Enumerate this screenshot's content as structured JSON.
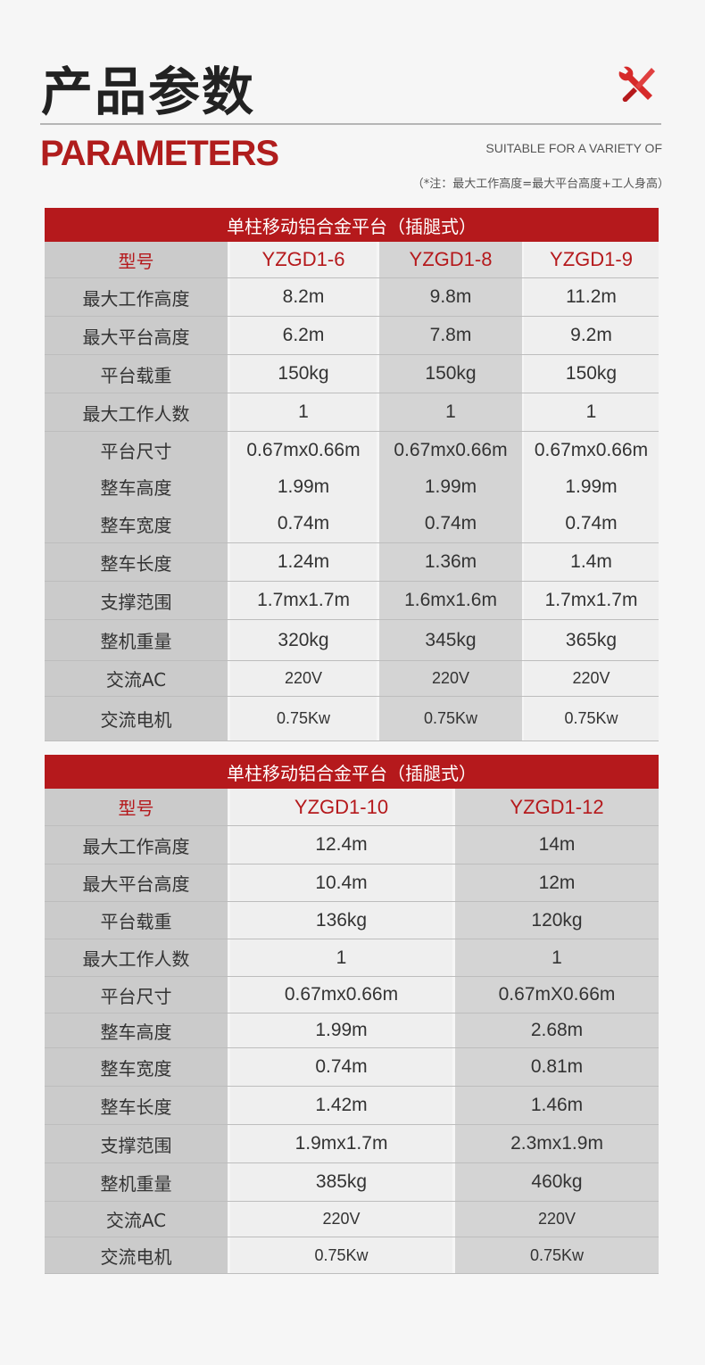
{
  "header": {
    "title_cn": "产品参数",
    "title_en": "PARAMETERS",
    "subtitle": "SUITABLE FOR A VARIETY OF",
    "note": "（*注：最大工作高度=最大平台高度+工人身高）",
    "icon": "tools-icon",
    "accent_color": "#b5191c"
  },
  "tables": [
    {
      "title": "单柱移动铝合金平台（插腿式）",
      "columns": [
        "型号",
        "YZGD1-6",
        "YZGD1-8",
        "YZGD1-9"
      ],
      "rows": [
        [
          "最大工作高度",
          "8.2m",
          "9.8m",
          "11.2m"
        ],
        [
          "最大平台高度",
          "6.2m",
          "7.8m",
          "9.2m"
        ],
        [
          "平台载重",
          "150kg",
          "150kg",
          "150kg"
        ],
        [
          "最大工作人数",
          "1",
          "1",
          "1"
        ],
        [
          "平台尺寸",
          "0.67mx0.66m",
          "0.67mx0.66m",
          "0.67mx0.66m"
        ],
        [
          "整车高度",
          "1.99m",
          "1.99m",
          "1.99m"
        ],
        [
          "整车宽度",
          "0.74m",
          "0.74m",
          "0.74m"
        ],
        [
          "整车长度",
          "1.24m",
          "1.36m",
          "1.4m"
        ],
        [
          "支撑范围",
          "1.7mx1.7m",
          "1.6mx1.6m",
          "1.7mx1.7m"
        ],
        [
          "整机重量",
          "320kg",
          "345kg",
          "365kg"
        ],
        [
          "交流AC",
          "220V",
          "220V",
          "220V"
        ],
        [
          "交流电机",
          "0.75Kw",
          "0.75Kw",
          "0.75Kw"
        ]
      ]
    },
    {
      "title": "单柱移动铝合金平台（插腿式）",
      "columns": [
        "型号",
        "YZGD1-10",
        "YZGD1-12"
      ],
      "rows": [
        [
          "最大工作高度",
          "12.4m",
          "14m"
        ],
        [
          "最大平台高度",
          "10.4m",
          "12m"
        ],
        [
          "平台载重",
          "136kg",
          "120kg"
        ],
        [
          "最大工作人数",
          "1",
          "1"
        ],
        [
          "平台尺寸",
          "0.67mx0.66m",
          "0.67mX0.66m"
        ],
        [
          "整车高度",
          "1.99m",
          "2.68m"
        ],
        [
          "整车宽度",
          "0.74m",
          "0.81m"
        ],
        [
          "整车长度",
          "1.42m",
          "1.46m"
        ],
        [
          "支撑范围",
          "1.9mx1.7m",
          "2.3mx1.9m"
        ],
        [
          "整机重量",
          "385kg",
          "460kg"
        ],
        [
          "交流AC",
          "220V",
          "220V"
        ],
        [
          "交流电机",
          "0.75Kw",
          "0.75Kw"
        ]
      ]
    }
  ]
}
